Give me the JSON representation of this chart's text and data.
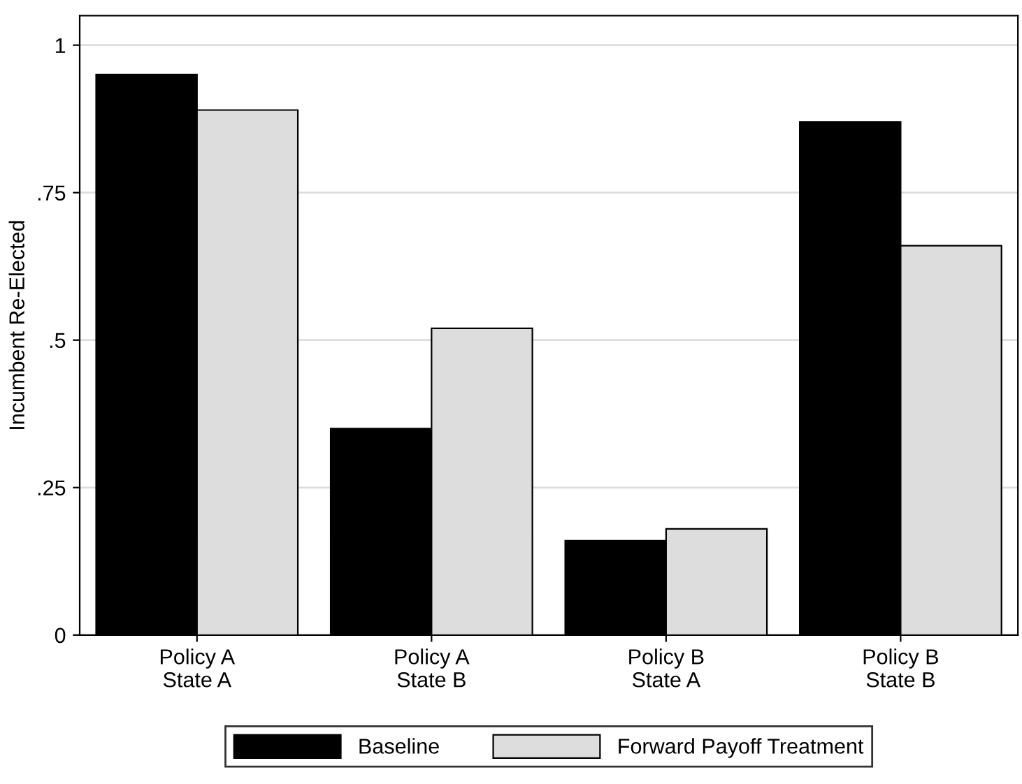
{
  "chart_data": {
    "type": "bar",
    "ylabel": "Incumbent Re-Elected",
    "categories": [
      "Policy A\nState A",
      "Policy A\nState B",
      "Policy B\nState A",
      "Policy B\nState B"
    ],
    "series": [
      {
        "name": "Baseline",
        "color": "#000000",
        "values": [
          0.95,
          0.35,
          0.16,
          0.87
        ]
      },
      {
        "name": "Forward Payoff Treatment",
        "color": "#dddddd",
        "values": [
          0.89,
          0.52,
          0.18,
          0.66
        ]
      }
    ],
    "ylim": [
      0,
      1.05
    ],
    "yticks": [
      0,
      {
        "value": 0.25,
        "label": ".25"
      },
      {
        "value": 0.5,
        "label": ".5"
      },
      {
        "value": 0.75,
        "label": ".75"
      },
      1
    ],
    "grid": "y",
    "legend": "bottom"
  }
}
